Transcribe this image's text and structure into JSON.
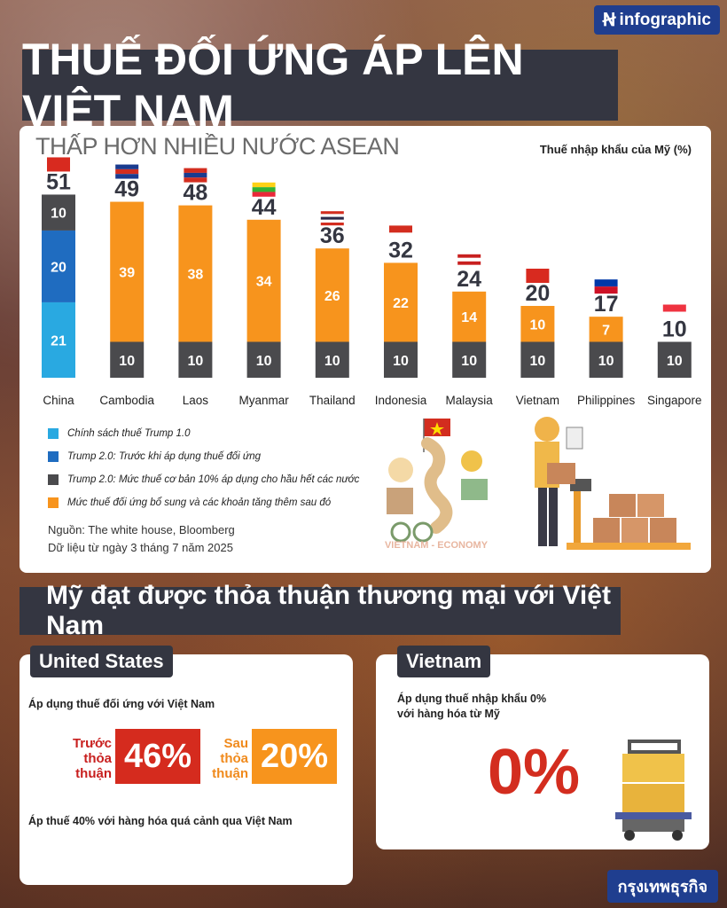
{
  "brand": {
    "name": "infographic"
  },
  "title": "THUẾ ĐỐI ỨNG ÁP LÊN VIỆT NAM",
  "chart_data": {
    "type": "bar",
    "title": "THẤP HƠN NHIỀU NƯỚC ASEAN",
    "ylabel": "Thuế nhập khẩu của Mỹ (%)",
    "categories": [
      "China",
      "Cambodia",
      "Laos",
      "Myanmar",
      "Thailand",
      "Indonesia",
      "Malaysia",
      "Vietnam",
      "Philippines",
      "Singapore"
    ],
    "totals": [
      51,
      49,
      48,
      44,
      36,
      32,
      24,
      20,
      17,
      10
    ],
    "series": [
      {
        "name": "Chính sách thuế Trump 1.0",
        "color": "#29a9e1",
        "values": [
          21,
          0,
          0,
          0,
          0,
          0,
          0,
          0,
          0,
          0
        ]
      },
      {
        "name": "Trump 2.0: Trước khi áp dụng thuế đối ứng",
        "color": "#1f6cc0",
        "values": [
          20,
          0,
          0,
          0,
          0,
          0,
          0,
          0,
          0,
          0
        ]
      },
      {
        "name": "Trump 2.0: Mức thuế cơ bản 10% áp dụng cho hầu hết các nước",
        "color": "#4a4a4d",
        "values": [
          10,
          10,
          10,
          10,
          10,
          10,
          10,
          10,
          10,
          10
        ]
      },
      {
        "name": "Mức thuế đối ứng bổ sung và các khoản tăng thêm sau đó",
        "color": "#f7941d",
        "values": [
          0,
          39,
          38,
          34,
          26,
          22,
          14,
          10,
          7,
          0
        ]
      }
    ],
    "ylim": [
      0,
      55
    ],
    "grid": false,
    "legend": "bottom-left"
  },
  "source": {
    "line1": "Nguồn: The white house, Bloomberg",
    "line2": "Dữ liệu từ ngày 3 tháng 7 năm 2025"
  },
  "illustration": {
    "caption": "VIETNAM - ECONOMY"
  },
  "section_title": "Mỹ đạt được thỏa thuận thương mại với Việt Nam",
  "us_card": {
    "tab": "United States",
    "text1": "Áp dụng thuế đối ứng với Việt Nam",
    "before_caption": [
      "Trước",
      "thỏa",
      "thuận"
    ],
    "before_value": "46%",
    "after_caption": [
      "Sau",
      "thỏa",
      "thuận"
    ],
    "after_value": "20%",
    "text2": "Áp thuế 40% với hàng hóa quá cảnh qua Việt Nam"
  },
  "vn_card": {
    "tab": "Vietnam",
    "text1": "Áp dụng thuế nhập khẩu 0%",
    "text2": "với hàng hóa từ Mỹ",
    "value": "0%"
  },
  "footer_brand": "กรุงเทพธุรกิจ",
  "colors": {
    "dark": "#343641",
    "orange": "#f7941d",
    "red": "#d32d1f",
    "brand_blue": "#1f3e8f"
  }
}
